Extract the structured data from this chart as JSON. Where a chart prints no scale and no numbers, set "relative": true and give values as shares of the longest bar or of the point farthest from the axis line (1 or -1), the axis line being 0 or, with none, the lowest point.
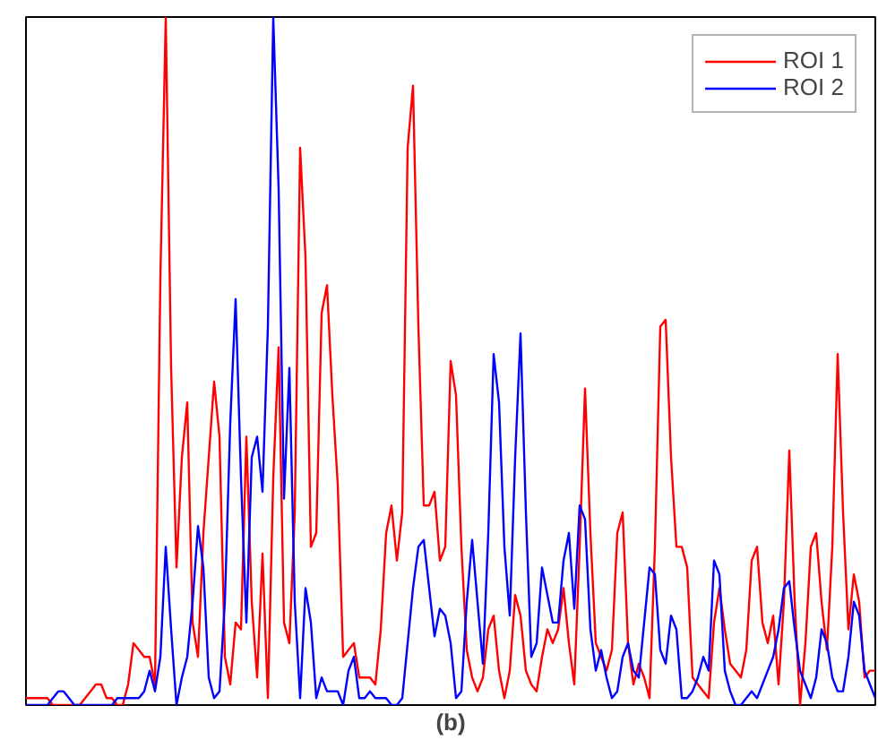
{
  "chart_data": {
    "type": "line",
    "xlabel": "(b)",
    "relative": true,
    "legend": "top right",
    "grid": false,
    "categories": [
      null,
      null,
      null,
      null,
      null,
      null,
      null,
      null,
      null,
      null,
      null,
      null,
      null,
      null,
      null,
      null,
      null,
      null,
      null,
      null,
      null,
      null,
      null,
      null,
      null,
      null,
      null,
      null,
      null,
      null,
      null,
      null,
      null,
      null,
      null,
      null,
      null,
      null,
      null,
      null,
      null,
      null,
      null,
      null,
      null,
      null,
      null,
      null,
      null,
      null,
      null,
      null,
      null,
      null,
      null,
      null,
      null,
      null,
      null,
      null,
      null,
      null,
      null,
      null,
      null,
      null,
      null,
      null,
      null,
      null,
      null,
      null,
      null,
      null,
      null,
      null,
      null,
      null,
      null,
      null,
      null,
      null,
      null,
      null,
      null,
      null,
      null,
      null,
      null,
      null,
      null,
      null,
      null,
      null,
      null,
      null,
      null,
      null,
      null,
      null,
      null,
      null,
      null,
      null,
      null,
      null,
      null,
      null,
      null,
      null,
      null,
      null,
      null,
      null,
      null,
      null,
      null,
      null,
      null,
      null,
      null,
      null,
      null,
      null,
      null,
      null,
      null,
      null,
      null,
      null,
      null,
      null,
      null,
      null,
      null,
      null,
      null,
      null,
      null,
      null,
      null,
      null,
      null,
      null,
      null,
      null,
      null,
      null,
      null,
      null,
      null,
      null,
      null,
      null,
      null,
      null,
      null,
      null,
      null
    ],
    "series": [
      {
        "name": "ROI 1",
        "color": "#ff0000",
        "values": [
          0.01,
          0.01,
          0.01,
          0.01,
          0.01,
          0,
          0,
          0,
          0,
          0,
          0,
          0.01,
          0.02,
          0.03,
          0.03,
          0.01,
          0.01,
          0,
          0,
          0.03,
          0.09,
          0.08,
          0.07,
          0.07,
          0.03,
          0.62,
          1.0,
          0.49,
          0.2,
          0.36,
          0.44,
          0.12,
          0.07,
          0.25,
          0.36,
          0.47,
          0.39,
          0.07,
          0.03,
          0.12,
          0.11,
          0.39,
          0.15,
          0.04,
          0.22,
          0.01,
          0.33,
          0.52,
          0.12,
          0.09,
          0.28,
          0.81,
          0.65,
          0.23,
          0.25,
          0.57,
          0.61,
          0.45,
          0.32,
          0.07,
          0.08,
          0.09,
          0.04,
          0.04,
          0.04,
          0.03,
          0.11,
          0.25,
          0.29,
          0.21,
          0.28,
          0.81,
          0.9,
          0.55,
          0.29,
          0.29,
          0.31,
          0.21,
          0.23,
          0.5,
          0.45,
          0.23,
          0.08,
          0.04,
          0.02,
          0.04,
          0.11,
          0.13,
          0.05,
          0.01,
          0.05,
          0.16,
          0.13,
          0.05,
          0.03,
          0.02,
          0.07,
          0.11,
          0.09,
          0.11,
          0.17,
          0.09,
          0.03,
          0.23,
          0.46,
          0.25,
          0.09,
          0.07,
          0.05,
          0.08,
          0.25,
          0.28,
          0.09,
          0.03,
          0.06,
          0.04,
          0.01,
          0.23,
          0.55,
          0.56,
          0.36,
          0.23,
          0.23,
          0.2,
          0.04,
          0.03,
          0.02,
          0.01,
          0.12,
          0.17,
          0.11,
          0.06,
          0.05,
          0.04,
          0.08,
          0.21,
          0.23,
          0.12,
          0.09,
          0.13,
          0.03,
          0.15,
          0.37,
          0.15,
          0,
          0.09,
          0.23,
          0.25,
          0.15,
          0.08,
          0.23,
          0.51,
          0.28,
          0.11,
          0.19,
          0.15,
          0.04,
          0.05,
          0.05
        ]
      },
      {
        "name": "ROI 2",
        "color": "#0000ff",
        "values": [
          0,
          0,
          0,
          0,
          0,
          0.01,
          0.02,
          0.02,
          0.01,
          0,
          0,
          0,
          0,
          0,
          0,
          0,
          0,
          0.01,
          0.01,
          0.01,
          0.01,
          0.01,
          0.02,
          0.05,
          0.02,
          0.07,
          0.23,
          0.11,
          0,
          0.04,
          0.07,
          0.15,
          0.26,
          0.2,
          0.04,
          0.01,
          0.02,
          0.15,
          0.41,
          0.59,
          0.33,
          0.12,
          0.36,
          0.39,
          0.31,
          0.55,
          1.0,
          0.75,
          0.3,
          0.49,
          0.15,
          0.01,
          0.17,
          0.12,
          0.01,
          0.04,
          0.02,
          0.02,
          0.02,
          0,
          0.05,
          0.07,
          0.01,
          0.01,
          0.02,
          0.01,
          0.01,
          0.01,
          0,
          0,
          0.01,
          0.09,
          0.17,
          0.23,
          0.24,
          0.17,
          0.1,
          0.14,
          0.13,
          0.09,
          0.01,
          0.02,
          0.15,
          0.24,
          0.15,
          0.06,
          0.25,
          0.51,
          0.44,
          0.23,
          0.13,
          0.36,
          0.54,
          0.28,
          0.07,
          0.09,
          0.2,
          0.16,
          0.12,
          0.12,
          0.21,
          0.25,
          0.14,
          0.29,
          0.27,
          0.11,
          0.05,
          0.08,
          0.04,
          0.01,
          0.02,
          0.07,
          0.09,
          0.05,
          0.04,
          0.12,
          0.2,
          0.19,
          0.08,
          0.06,
          0.13,
          0.11,
          0.01,
          0.01,
          0.02,
          0.04,
          0.07,
          0.05,
          0.21,
          0.19,
          0.05,
          0.02,
          0,
          0,
          0.01,
          0.02,
          0.01,
          0.03,
          0.05,
          0.07,
          0.11,
          0.17,
          0.18,
          0.11,
          0.05,
          0.03,
          0.01,
          0.04,
          0.11,
          0.09,
          0.04,
          0.02,
          0.02,
          0.07,
          0.15,
          0.13,
          0.05,
          0.03,
          0.01
        ]
      }
    ]
  }
}
